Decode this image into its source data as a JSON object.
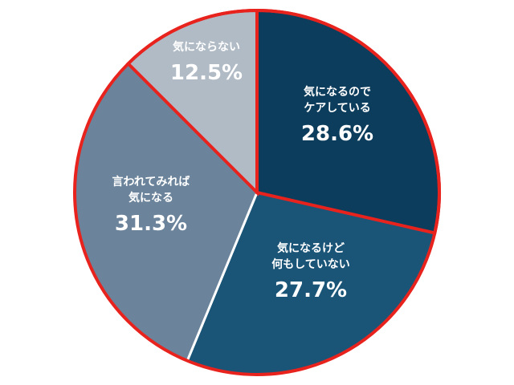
{
  "chart_data": {
    "type": "pie",
    "slices": [
      {
        "label_lines": [
          "気になるので",
          "ケアしている"
        ],
        "value": 28.6,
        "value_text": "28.6%",
        "color": "#0d3d5c"
      },
      {
        "label_lines": [
          "気になるけど",
          "何もしていない"
        ],
        "value": 27.7,
        "value_text": "27.7%",
        "color": "#1a5578"
      },
      {
        "label_lines": [
          "言われてみれば",
          "気になる"
        ],
        "value": 31.3,
        "value_text": "31.3%",
        "color": "#6b849b"
      },
      {
        "label_lines": [
          "気にならない"
        ],
        "value": 12.5,
        "value_text": "12.5%",
        "color": "#b0bbc6"
      }
    ],
    "start_angle_deg": 0,
    "direction": "clockwise",
    "highlighted_slices": [
      0,
      3
    ],
    "highlight_color": "#e8231e",
    "separator_color": "#ffffff"
  }
}
